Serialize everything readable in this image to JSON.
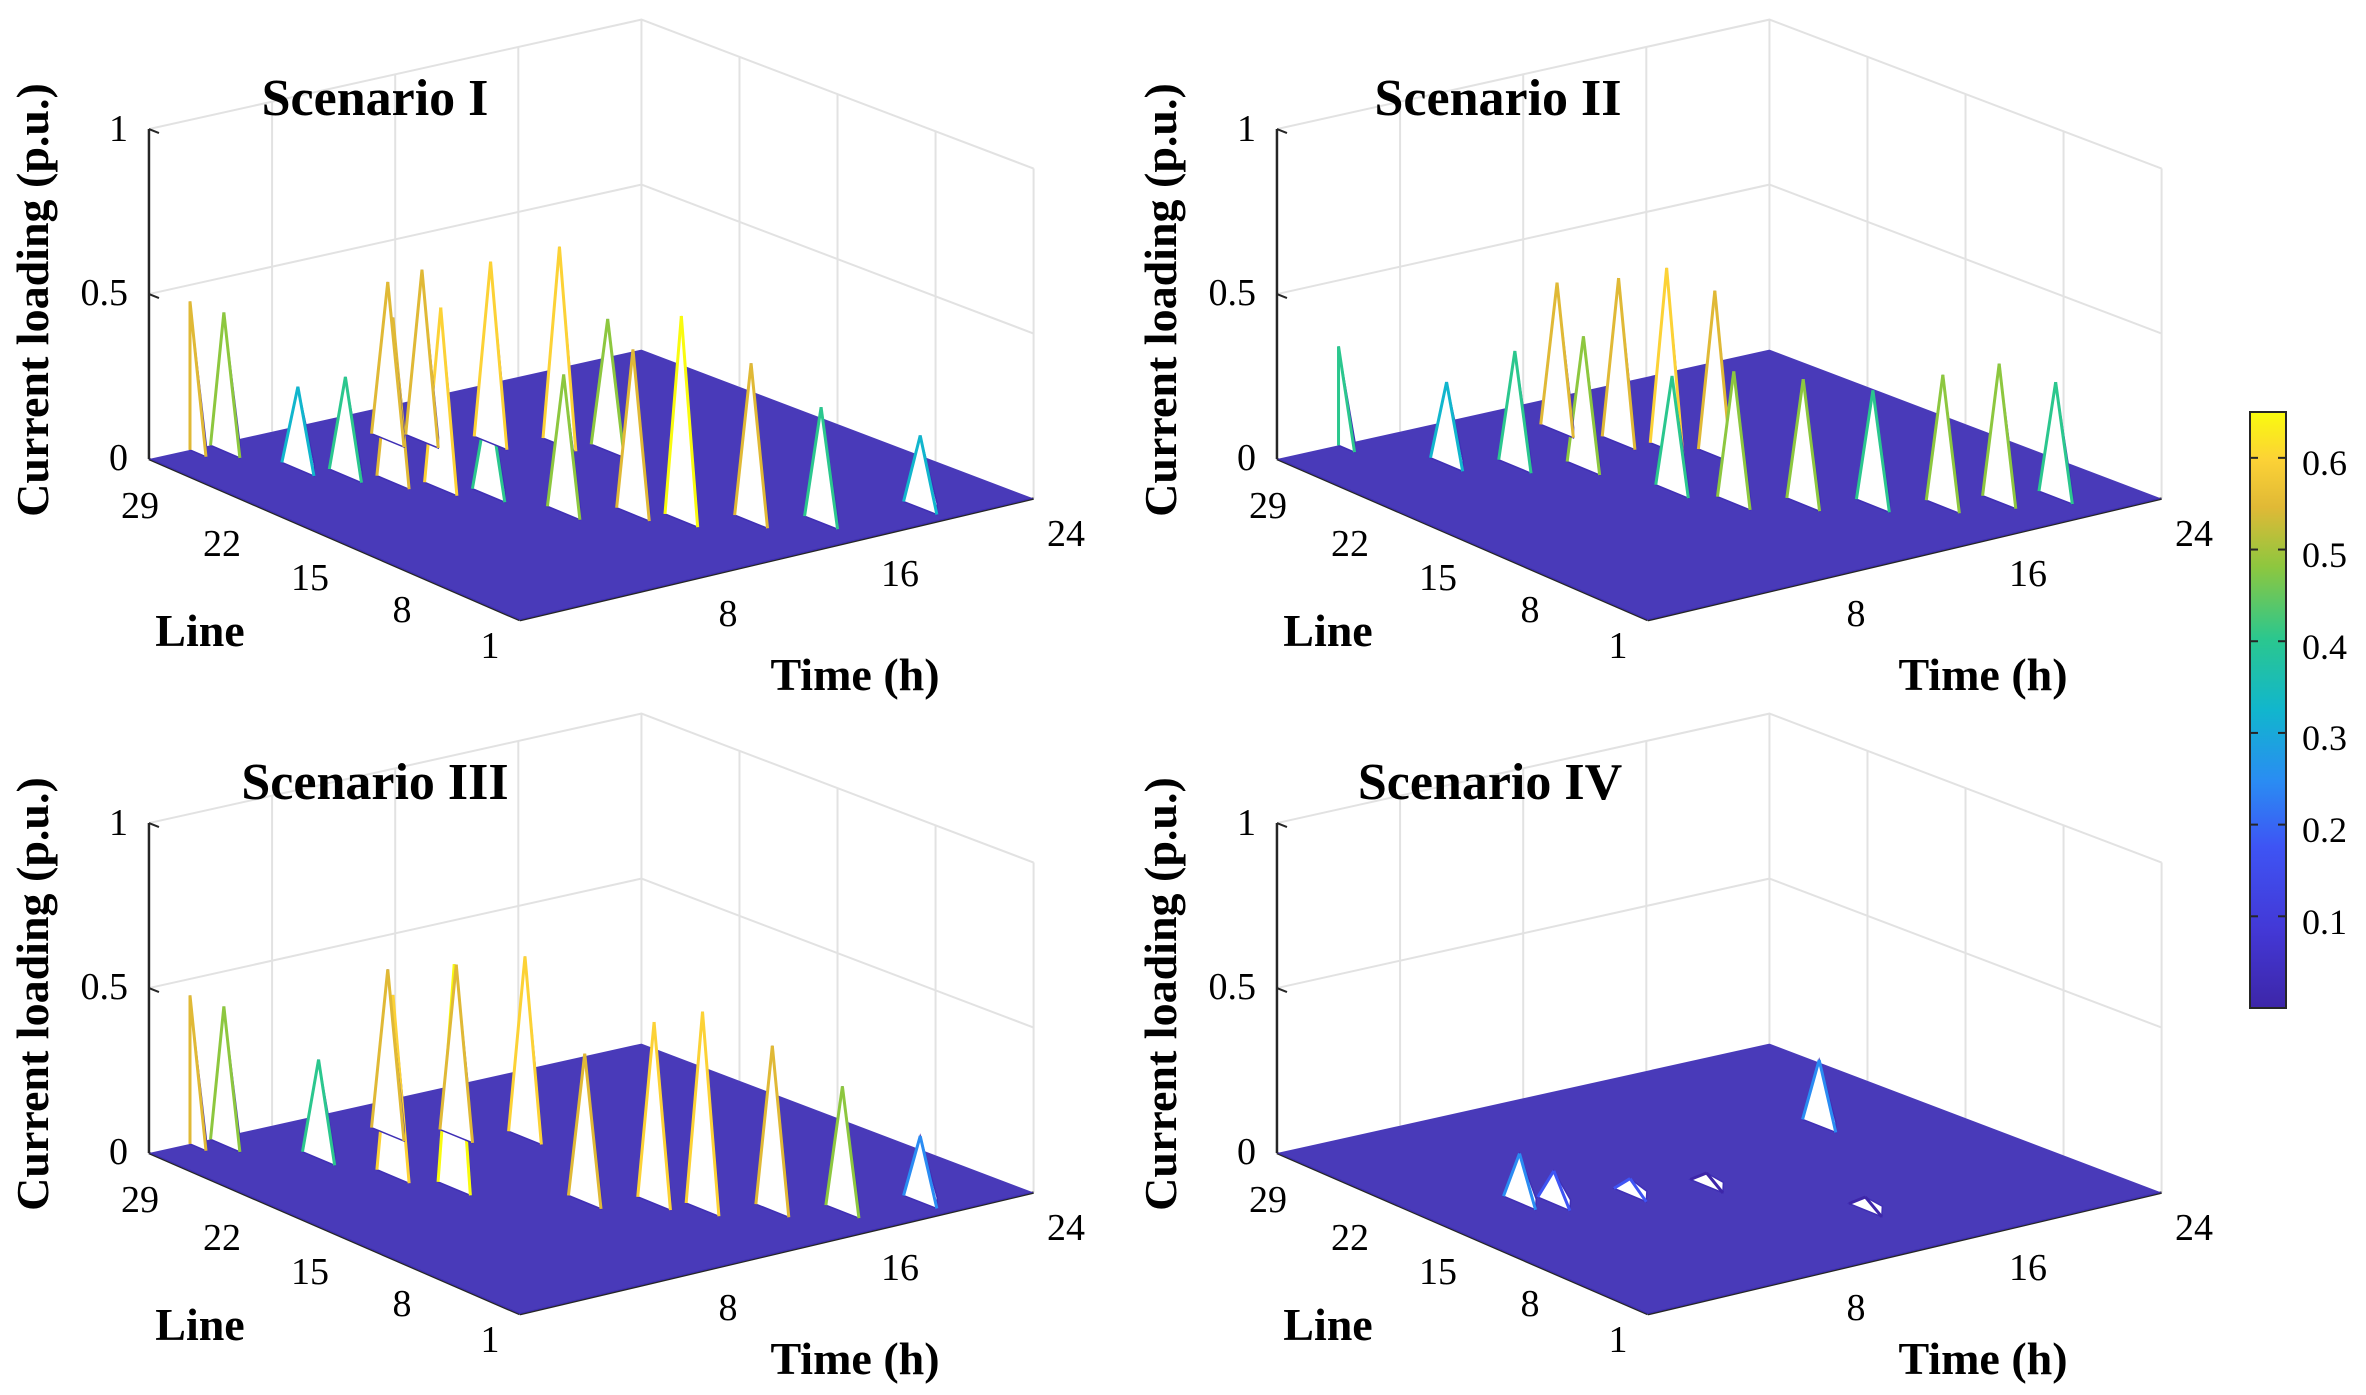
{
  "chart_data": [
    {
      "type": "surface3d",
      "title": "Scenario I",
      "zlabel": "Current loading (p.u.)",
      "ylabel": "Line",
      "xlabel": "Time (h)",
      "zticks": [
        "0",
        "0.5",
        "1"
      ],
      "lineticks": [
        "29",
        "22",
        "15",
        "8",
        "1"
      ],
      "timeticks": [
        "8",
        "16",
        "24"
      ],
      "zlim": [
        0,
        1
      ],
      "peaks": [
        {
          "line": 29,
          "time": 2,
          "value": 0.45
        },
        {
          "line": 28,
          "time": 3,
          "value": 0.42
        },
        {
          "line": 24,
          "time": 4,
          "value": 0.25
        },
        {
          "line": 22,
          "time": 5,
          "value": 0.3
        },
        {
          "line": 20,
          "time": 6,
          "value": 0.5
        },
        {
          "line": 18,
          "time": 7,
          "value": 0.55
        },
        {
          "line": 16,
          "time": 8,
          "value": 0.3
        },
        {
          "line": 25,
          "time": 9,
          "value": 0.48
        },
        {
          "line": 24,
          "time": 10,
          "value": 0.52
        },
        {
          "line": 22,
          "time": 12,
          "value": 0.55
        },
        {
          "line": 20,
          "time": 14,
          "value": 0.6
        },
        {
          "line": 18,
          "time": 15,
          "value": 0.4
        },
        {
          "line": 12,
          "time": 9,
          "value": 0.42
        },
        {
          "line": 10,
          "time": 11,
          "value": 0.5
        },
        {
          "line": 8,
          "time": 12,
          "value": 0.62
        },
        {
          "line": 6,
          "time": 14,
          "value": 0.48
        },
        {
          "line": 4,
          "time": 16,
          "value": 0.35
        },
        {
          "line": 3,
          "time": 20,
          "value": 0.22
        }
      ]
    },
    {
      "type": "surface3d",
      "title": "Scenario II",
      "zlabel": "Current loading (p.u.)",
      "ylabel": "Line",
      "xlabel": "Time (h)",
      "zticks": [
        "0",
        "0.5",
        "1"
      ],
      "lineticks": [
        "29",
        "22",
        "15",
        "8",
        "1"
      ],
      "timeticks": [
        "8",
        "16",
        "24"
      ],
      "zlim": [
        0,
        1
      ],
      "peaks": [
        {
          "line": 29,
          "time": 3,
          "value": 0.3
        },
        {
          "line": 24,
          "time": 5,
          "value": 0.25
        },
        {
          "line": 22,
          "time": 7,
          "value": 0.35
        },
        {
          "line": 20,
          "time": 9,
          "value": 0.4
        },
        {
          "line": 25,
          "time": 11,
          "value": 0.45
        },
        {
          "line": 22,
          "time": 12,
          "value": 0.5
        },
        {
          "line": 20,
          "time": 13,
          "value": 0.55
        },
        {
          "line": 18,
          "time": 14,
          "value": 0.5
        },
        {
          "line": 15,
          "time": 10,
          "value": 0.35
        },
        {
          "line": 12,
          "time": 11,
          "value": 0.4
        },
        {
          "line": 10,
          "time": 13,
          "value": 0.38
        },
        {
          "line": 8,
          "time": 15,
          "value": 0.35
        },
        {
          "line": 6,
          "time": 17,
          "value": 0.4
        },
        {
          "line": 5,
          "time": 19,
          "value": 0.42
        },
        {
          "line": 4,
          "time": 21,
          "value": 0.35
        }
      ]
    },
    {
      "type": "surface3d",
      "title": "Scenario III",
      "zlabel": "Current loading (p.u.)",
      "ylabel": "Line",
      "xlabel": "Time (h)",
      "zticks": [
        "0",
        "0.5",
        "1"
      ],
      "lineticks": [
        "29",
        "22",
        "15",
        "8",
        "1"
      ],
      "timeticks": [
        "8",
        "16",
        "24"
      ],
      "zlim": [
        0,
        1
      ],
      "peaks": [
        {
          "line": 29,
          "time": 2,
          "value": 0.45
        },
        {
          "line": 28,
          "time": 3,
          "value": 0.42
        },
        {
          "line": 24,
          "time": 5,
          "value": 0.3
        },
        {
          "line": 20,
          "time": 6,
          "value": 0.55
        },
        {
          "line": 17,
          "time": 7,
          "value": 0.68
        },
        {
          "line": 25,
          "time": 9,
          "value": 0.5
        },
        {
          "line": 23,
          "time": 11,
          "value": 0.52
        },
        {
          "line": 21,
          "time": 13,
          "value": 0.55
        },
        {
          "line": 12,
          "time": 10,
          "value": 0.45
        },
        {
          "line": 10,
          "time": 12,
          "value": 0.55
        },
        {
          "line": 8,
          "time": 13,
          "value": 0.6
        },
        {
          "line": 6,
          "time": 15,
          "value": 0.5
        },
        {
          "line": 4,
          "time": 17,
          "value": 0.38
        },
        {
          "line": 3,
          "time": 20,
          "value": 0.2
        }
      ]
    },
    {
      "type": "surface3d",
      "title": "Scenario IV",
      "zlabel": "Current loading (p.u.)",
      "ylabel": "Line",
      "xlabel": "Time (h)",
      "zticks": [
        "0",
        "0.5",
        "1"
      ],
      "lineticks": [
        "29",
        "22",
        "15",
        "8",
        "1"
      ],
      "timeticks": [
        "8",
        "16",
        "24"
      ],
      "zlim": [
        0,
        1
      ],
      "peaks": [
        {
          "line": 17,
          "time": 4,
          "value": 0.15
        },
        {
          "line": 16,
          "time": 5,
          "value": 0.1
        },
        {
          "line": 15,
          "time": 8,
          "value": 0.05
        },
        {
          "line": 14,
          "time": 11,
          "value": 0.04
        },
        {
          "line": 7,
          "time": 14,
          "value": 0.04
        },
        {
          "line": 18,
          "time": 19,
          "value": 0.2
        }
      ]
    }
  ],
  "colorbar": {
    "ticks": [
      "0.1",
      "0.2",
      "0.3",
      "0.4",
      "0.5",
      "0.6"
    ],
    "range": [
      0,
      0.65
    ],
    "colors": [
      "#3d26a8",
      "#3e54f4",
      "#2a8cf3",
      "#11b6cd",
      "#2bc78e",
      "#8dc73f",
      "#e0b936",
      "#fcd236",
      "#f9fb0e"
    ]
  },
  "colors": {
    "surface_base": "#3f2fb5",
    "axis": "#262626",
    "grid": "#e2e2e2"
  }
}
